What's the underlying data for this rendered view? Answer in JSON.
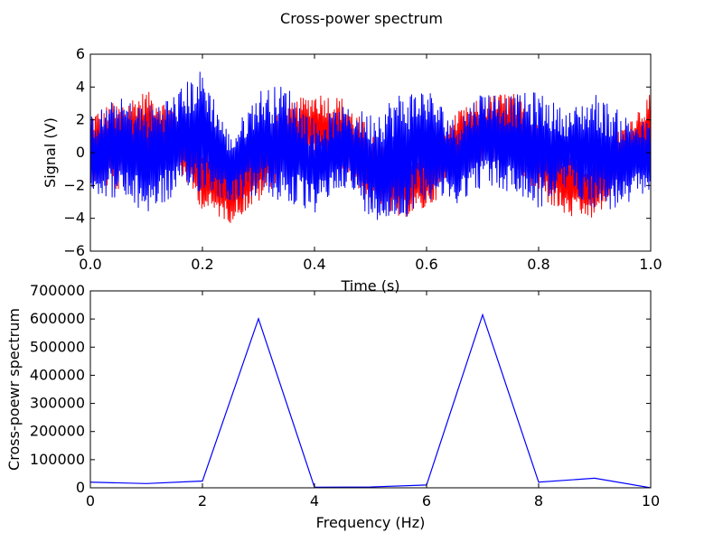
{
  "figure": {
    "title": "Cross-power spectrum"
  },
  "chart_data": [
    {
      "type": "line",
      "title": "",
      "xlabel": "Time (s)",
      "ylabel": "Signal (V)",
      "xlim": [
        0.0,
        1.0
      ],
      "ylim": [
        -6,
        6
      ],
      "xticks": [
        0.0,
        0.2,
        0.4,
        0.6,
        0.8,
        1.0
      ],
      "xtick_labels": [
        "0.0",
        "0.2",
        "0.4",
        "0.6",
        "0.8",
        "1.0"
      ],
      "yticks": [
        -6,
        -4,
        -2,
        0,
        2,
        4,
        6
      ],
      "ytick_labels": [
        "−6",
        "−4",
        "−2",
        "0",
        "2",
        "4",
        "6"
      ],
      "grid": false,
      "series": [
        {
          "color": "#ff0000",
          "envelope": {
            "x": [
              0.0,
              0.05,
              0.1,
              0.15,
              0.2,
              0.25,
              0.3,
              0.35,
              0.4,
              0.45,
              0.5,
              0.55,
              0.6,
              0.65,
              0.7,
              0.75,
              0.8,
              0.85,
              0.9,
              0.95,
              1.0
            ],
            "y_max": [
              2.5,
              3.2,
              3.8,
              2.8,
              0.7,
              -0.5,
              1.2,
              2.9,
              3.8,
              3.4,
              1.5,
              -0.3,
              0.5,
              2.4,
              3.4,
              3.8,
              2.5,
              0.2,
              -0.3,
              1.8,
              3.6
            ],
            "y_min": [
              -1.8,
              -2.5,
              -0.6,
              -0.7,
              -3.5,
              -4.3,
              -3.1,
              -1.2,
              -0.8,
              -1.3,
              -3.3,
              -4.1,
              -3.5,
              -1.7,
              -0.8,
              -1.0,
              -2.7,
              -4.0,
              -4.1,
              -2.0,
              -0.6
            ]
          }
        },
        {
          "color": "#0000ff",
          "envelope": {
            "x": [
              0.0,
              0.05,
              0.1,
              0.15,
              0.2,
              0.25,
              0.3,
              0.35,
              0.4,
              0.45,
              0.5,
              0.55,
              0.6,
              0.65,
              0.7,
              0.75,
              0.8,
              0.85,
              0.9,
              0.95,
              1.0
            ],
            "y_max": [
              2.3,
              3.4,
              2.9,
              3.7,
              5.2,
              1.0,
              3.9,
              4.2,
              2.0,
              2.8,
              2.5,
              3.7,
              4.1,
              2.0,
              3.9,
              3.5,
              3.8,
              2.5,
              3.7,
              2.4,
              1.8
            ],
            "y_min": [
              -2.5,
              -2.9,
              -3.8,
              -2.8,
              -2.4,
              -3.0,
              -2.7,
              -3.2,
              -3.8,
              -2.0,
              -4.0,
              -4.4,
              -2.8,
              -3.2,
              -2.1,
              -2.5,
              -3.5,
              -2.2,
              -3.5,
              -3.6,
              -2.2
            ]
          }
        }
      ]
    },
    {
      "type": "line",
      "title": "",
      "xlabel": "Frequency (Hz)",
      "ylabel": "Cross-poewr spectrum",
      "xlim": [
        0,
        10
      ],
      "ylim": [
        0,
        700000
      ],
      "xticks": [
        0,
        2,
        4,
        6,
        8,
        10
      ],
      "xtick_labels": [
        "0",
        "2",
        "4",
        "6",
        "8",
        "10"
      ],
      "yticks": [
        0,
        100000,
        200000,
        300000,
        400000,
        500000,
        600000,
        700000
      ],
      "ytick_labels": [
        "0",
        "100000",
        "200000",
        "300000",
        "400000",
        "500000",
        "600000",
        "700000"
      ],
      "grid": false,
      "series": [
        {
          "color": "#0000ff",
          "x": [
            0,
            1,
            2,
            3,
            4,
            5,
            6,
            7,
            8,
            9,
            10
          ],
          "values": [
            20000,
            15000,
            24000,
            601000,
            2000,
            3000,
            10000,
            615000,
            20000,
            34000,
            0
          ]
        }
      ]
    }
  ]
}
